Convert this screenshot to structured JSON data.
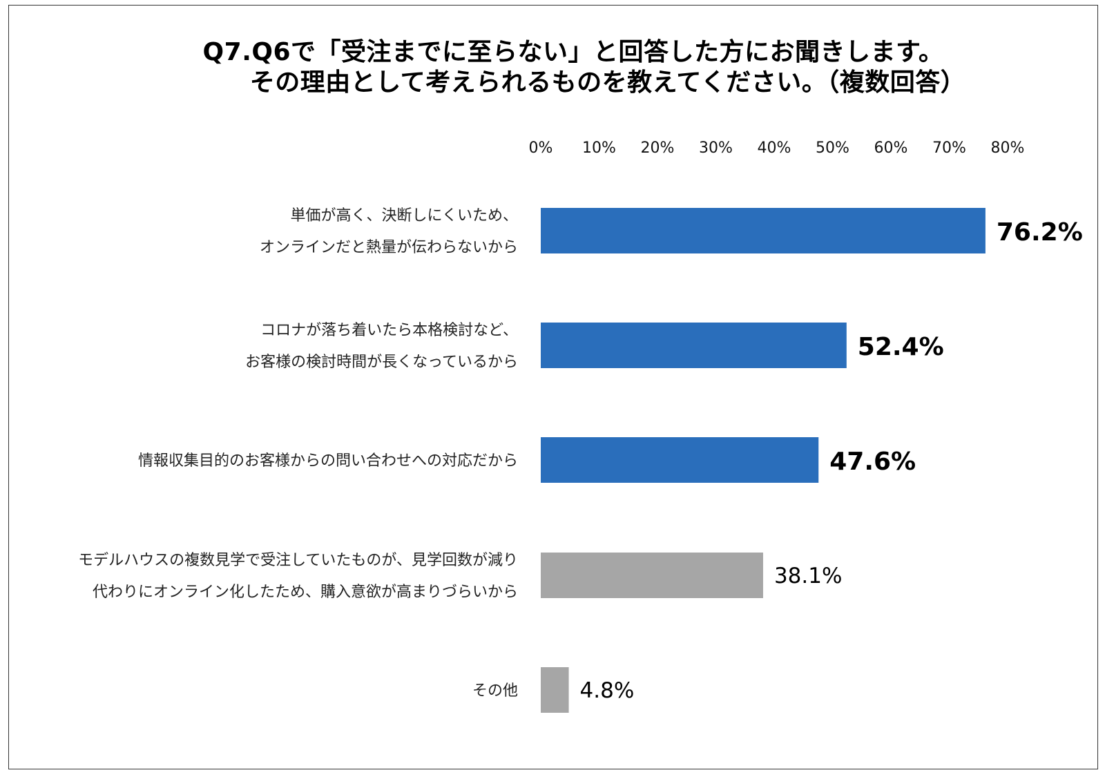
{
  "title_line1": "Q7.Q6で「受注までに至らない」と回答した方にお聞きします。",
  "title_line2": "その理由として考えられるものを教えてください。（複数回答）",
  "chart_data": {
    "type": "bar",
    "orientation": "horizontal",
    "xlim": [
      0,
      80
    ],
    "x_ticks": [
      "0%",
      "10%",
      "20%",
      "30%",
      "40%",
      "50%",
      "60%",
      "70%",
      "80%"
    ],
    "x_tick_values": [
      0,
      10,
      20,
      30,
      40,
      50,
      60,
      70,
      80
    ],
    "x_axis_position": "top",
    "grid": false,
    "categories": [
      [
        "単価が高く、決断しにくいため、",
        "オンラインだと熱量が伝わらないから"
      ],
      [
        "コロナが落ち着いたら本格検討など、",
        "お客様の検討時間が長くなっているから"
      ],
      [
        "情報収集目的のお客様からの問い合わせへの対応だから"
      ],
      [
        "モデルハウスの複数見学で受注していたものが、見学回数が減り",
        "代わりにオンライン化したため、購入意欲が高まりづらいから"
      ],
      [
        "その他"
      ]
    ],
    "values": [
      76.2,
      52.4,
      47.6,
      38.1,
      4.8
    ],
    "value_labels": [
      "76.2%",
      "52.4%",
      "47.6%",
      "38.1%",
      "4.8%"
    ],
    "highlighted": [
      true,
      true,
      true,
      false,
      false
    ],
    "colors": {
      "highlight": "#2a6ebb",
      "normal": "#a6a6a6"
    }
  }
}
